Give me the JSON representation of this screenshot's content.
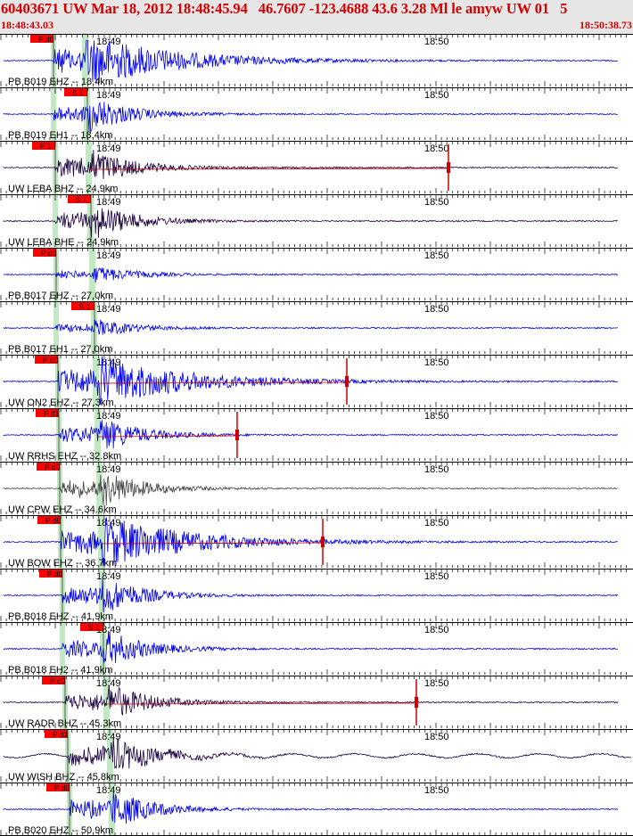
{
  "header": {
    "title": "60403671 UW Mar 18, 2012 18:48:45.94   46.7607 -123.4688 43.6 3.28 Ml le amyw UW 01   5",
    "start_time": "18:48:43.03",
    "end_time": "18:50:38.73"
  },
  "time_labels": {
    "first": "18:49",
    "second": "18:50"
  },
  "colors": {
    "header_bg": "#e6e6e6",
    "header_text": "#d40000",
    "pick_flag": "#ff0000",
    "pick_band": "#c4e8c4",
    "trace_blue": "#0000ee",
    "trace_dark": "#1a0040",
    "trace_gray": "#444444",
    "coda_red": "#cc0000"
  },
  "traces": [
    {
      "label": "PB B019 EHZ -- 18.4km",
      "pick": "P d0",
      "color": "blue",
      "amp": "high",
      "coda": false
    },
    {
      "label": "PB B019 EH1 -- 18.4km",
      "pick": "S 1",
      "color": "blue",
      "amp": "med",
      "coda": false
    },
    {
      "label": "UW LEBA BHZ -- 24.9km",
      "pick": "P 1",
      "color": "dark",
      "amp": "med",
      "coda": true
    },
    {
      "label": "UW LEBA BHE -- 24.9km",
      "pick": "S 1",
      "color": "dark",
      "amp": "med",
      "coda": false
    },
    {
      "label": "PB B017 EHZ -- 27.0km",
      "pick": "P d0",
      "color": "blue",
      "amp": "low",
      "coda": false
    },
    {
      "label": "PB B017 EH1 -- 27.0km",
      "pick": "S 1",
      "color": "blue",
      "amp": "low",
      "coda": false
    },
    {
      "label": "UW ON2 EHZ -- 27.3km",
      "pick": "P d0",
      "color": "blue",
      "amp": "high",
      "coda": true
    },
    {
      "label": "UW RRHS EHZ -- 32.8km",
      "pick": "P d1",
      "color": "blue",
      "amp": "med",
      "coda": true
    },
    {
      "label": "UW CPW EHZ -- 34.6km",
      "pick": "P d0",
      "color": "gray",
      "amp": "med",
      "coda": false
    },
    {
      "label": "UW BOW EHZ -- 36.7km",
      "pick": "P d0",
      "color": "blue",
      "amp": "high",
      "coda": true
    },
    {
      "label": "PB B018 EHZ -- 41.9km",
      "pick": "P d0",
      "color": "blue",
      "amp": "med",
      "coda": false
    },
    {
      "label": "PB B018 EH2 -- 41.9km",
      "pick": "S 1",
      "color": "blue",
      "amp": "med",
      "coda": false
    },
    {
      "label": "UW RADR BHZ -- 45.3km",
      "pick": "P d0",
      "color": "dark",
      "amp": "med",
      "coda": true
    },
    {
      "label": "UW WISH BHZ -- 45.8km",
      "pick": "P d1",
      "color": "dark",
      "amp": "med",
      "coda": false
    },
    {
      "label": "PB B020 EHZ -- 50.9km",
      "pick": "P d0",
      "color": "blue",
      "amp": "med",
      "coda": false
    }
  ]
}
